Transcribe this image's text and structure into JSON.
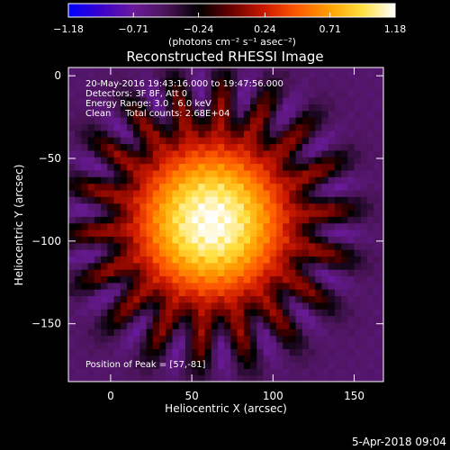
{
  "chart_data": {
    "type": "heatmap",
    "title": "Reconstructed RHESSI Image",
    "xlabel": "Heliocentric X (arcsec)",
    "ylabel": "Heliocentric Y (arcsec)",
    "xlim": [
      -26,
      168
    ],
    "ylim": [
      -185,
      5
    ],
    "x_ticks": [
      0,
      50,
      100,
      150
    ],
    "y_ticks": [
      0,
      -50,
      -100,
      -150
    ],
    "colorbar": {
      "range": [
        -1.18,
        1.18
      ],
      "ticks": [
        -1.18,
        -0.71,
        -0.24,
        0.24,
        0.71,
        1.18
      ],
      "tick_labels": [
        "-1.18",
        "-0.71",
        "-0.24",
        "0.24",
        "0.71",
        "1.18"
      ],
      "unit_label": "(photons cm⁻² s⁻¹ asec⁻²)",
      "colormap": [
        "#0000ff",
        "#3c00cc",
        "#6a1a9a",
        "#4a1458",
        "#000000",
        "#6a0000",
        "#cc1800",
        "#ff5a00",
        "#ffa000",
        "#ffe040",
        "#ffffff"
      ]
    },
    "info_lines": [
      "20-May-2016 19:43:16.000 to 19:47:56.000",
      "Detectors: 3F 8F, Att 0",
      "Energy Range: 3.0 - 6.0 keV",
      "Clean     Total counts: 2.68E+04"
    ],
    "peak_label": "Position of Peak = [57,-81]",
    "peak": [
      57,
      -81
    ],
    "source": {
      "center": [
        62,
        -88
      ],
      "sigma": 38,
      "peak_value": 1.18
    },
    "background_value": -0.55,
    "grid": false
  },
  "footer": {
    "date": "5-Apr-2018 09:04"
  }
}
